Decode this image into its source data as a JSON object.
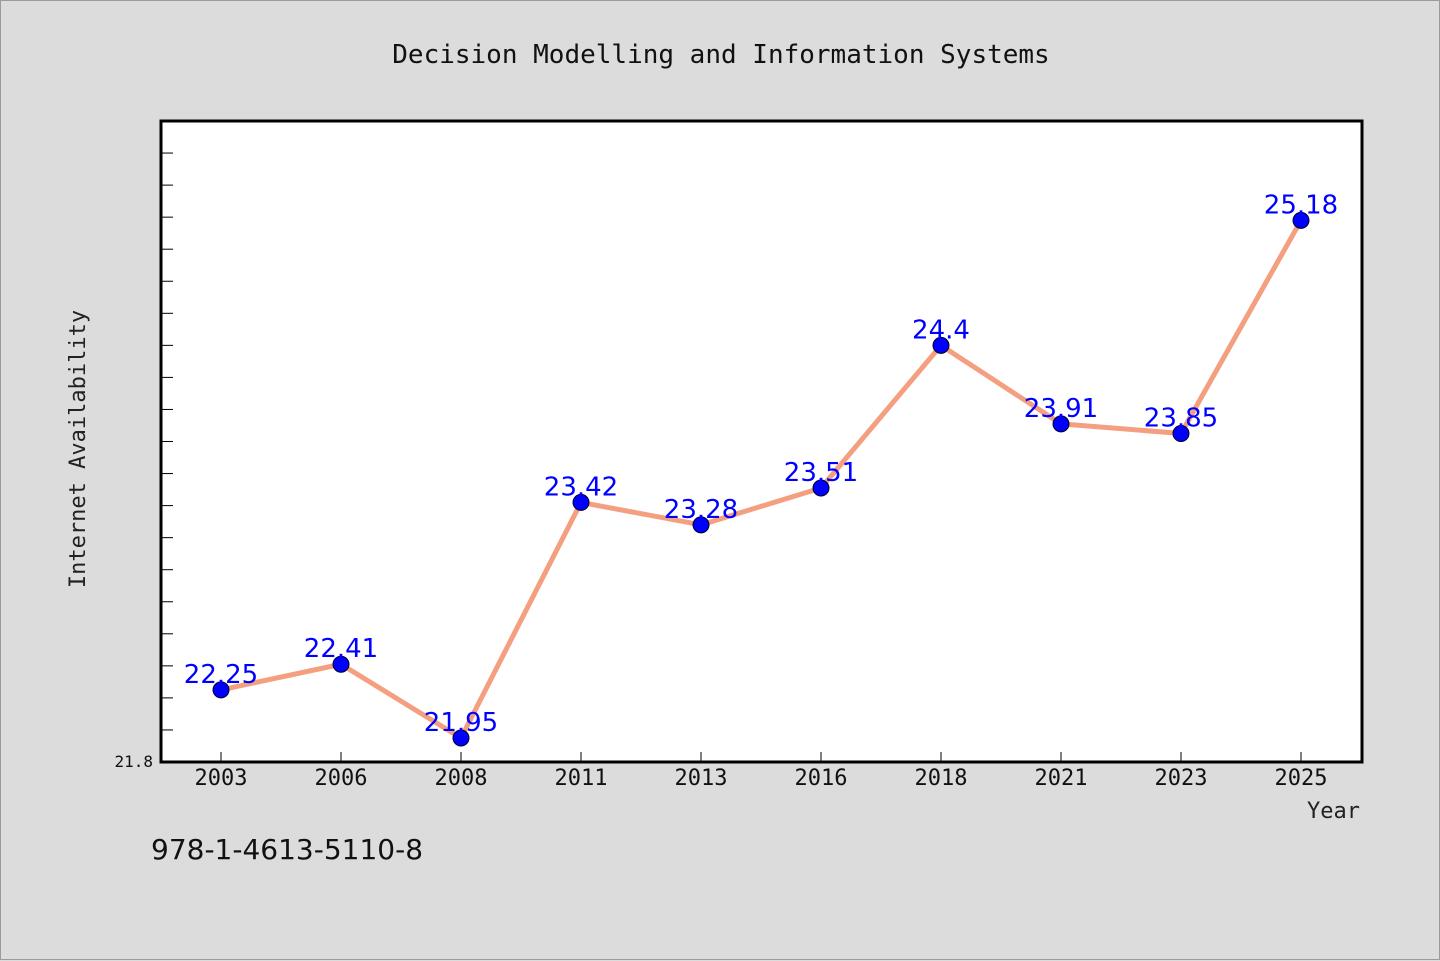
{
  "colors": {
    "background": "#dcdcdc",
    "plot_background": "#ffffff",
    "line": "#f4a080",
    "marker": "#0000ff",
    "data_label": "#0000ff"
  },
  "footer": {
    "text": "978-1-4613-5110-8"
  },
  "chart_data": {
    "type": "line",
    "title": "Decision Modelling and Information Systems",
    "xlabel": "Year",
    "ylabel": "Internet Availability",
    "categories": [
      "2003",
      "2006",
      "2008",
      "2011",
      "2013",
      "2016",
      "2018",
      "2021",
      "2023",
      "2025"
    ],
    "series": [
      {
        "values": [
          22.25,
          22.41,
          21.95,
          23.42,
          23.28,
          23.51,
          24.4,
          23.91,
          23.85,
          25.18
        ]
      }
    ],
    "data_labels": [
      "22.25",
      "22.41",
      "21.95",
      "23.42",
      "23.28",
      "23.51",
      "24.4",
      "23.91",
      "23.85",
      "25.18"
    ],
    "y_tick_labels": [
      "21.8"
    ],
    "ylim": [
      21.8,
      25.8
    ],
    "grid": false,
    "legend": "none"
  }
}
